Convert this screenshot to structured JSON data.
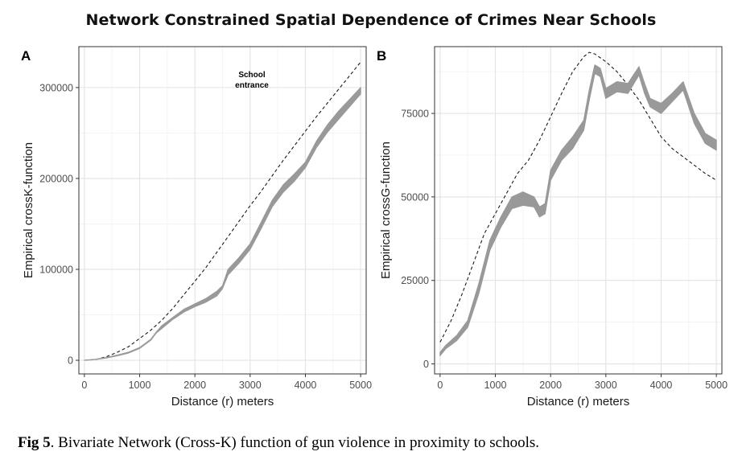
{
  "figure_title": "Network Constrained Spatial Dependence of Crimes Near Schools",
  "caption": {
    "label": "Fig 5",
    "text": ". Bivariate Network (Cross-K) function of gun violence in proximity to schools."
  },
  "colors": {
    "observed_band": "#999999",
    "expected_line": "#1a1a1a",
    "grid_major": "#e3e3e3",
    "grid_minor": "#f1f1f1",
    "panel_border": "#333333"
  },
  "chart_data": [
    {
      "panel": "A",
      "type": "line",
      "xlabel": "Distance (r) meters",
      "ylabel": "Empirical crossK-function",
      "xlim": [
        -100,
        5100
      ],
      "ylim": [
        -15000,
        345000
      ],
      "x_ticks": [
        0,
        1000,
        2000,
        3000,
        4000,
        5000
      ],
      "y_ticks": [
        0,
        100000,
        200000,
        300000
      ],
      "y_tick_labels": [
        "0",
        "100000",
        "200000",
        "300000"
      ],
      "annotation": [
        "School",
        "entrance"
      ],
      "series": [
        {
          "style": "dashed",
          "x": [
            0,
            200,
            400,
            600,
            800,
            1000,
            1200,
            1400,
            1600,
            1800,
            2000,
            2200,
            2400,
            2600,
            2800,
            3000,
            3200,
            3400,
            3600,
            3800,
            4000,
            4200,
            4400,
            4600,
            4800,
            5000
          ],
          "y": [
            0,
            800,
            4000,
            9000,
            15000,
            24000,
            33000,
            44000,
            57000,
            72000,
            87000,
            102000,
            119000,
            136000,
            153000,
            170000,
            186000,
            203000,
            220000,
            236000,
            252000,
            268000,
            283000,
            298000,
            313000,
            328000
          ]
        },
        {
          "style": "band",
          "x": [
            0,
            200,
            400,
            600,
            800,
            1000,
            1200,
            1300,
            1400,
            1600,
            1800,
            2000,
            2200,
            2400,
            2500,
            2600,
            2800,
            3000,
            3200,
            3400,
            3600,
            3800,
            4000,
            4200,
            4400,
            4600,
            4800,
            5000
          ],
          "y_low": [
            0,
            900,
            2500,
            5000,
            8000,
            13000,
            22000,
            30000,
            35000,
            45000,
            53000,
            59000,
            64000,
            71000,
            79000,
            94000,
            107000,
            122000,
            145000,
            169000,
            185000,
            197000,
            212000,
            234000,
            251000,
            265000,
            279000,
            293000
          ],
          "y_high": [
            0,
            1100,
            3000,
            5800,
            9000,
            14000,
            23000,
            31000,
            38000,
            47000,
            56000,
            62000,
            68000,
            76000,
            82000,
            100000,
            113000,
            128000,
            152000,
            176000,
            193000,
            205000,
            218000,
            241000,
            259000,
            274000,
            287000,
            300000
          ]
        }
      ]
    },
    {
      "panel": "B",
      "type": "line",
      "xlabel": "Distance (r) meters",
      "ylabel": "Empirical crossG-function",
      "xlim": [
        -100,
        5100
      ],
      "ylim": [
        -3000,
        95000
      ],
      "x_ticks": [
        0,
        1000,
        2000,
        3000,
        4000,
        5000
      ],
      "y_ticks": [
        0,
        25000,
        50000,
        75000
      ],
      "y_tick_labels": [
        "0",
        "25000",
        "50000",
        "75000"
      ],
      "series": [
        {
          "style": "dashed",
          "x": [
            0,
            200,
            400,
            600,
            800,
            1000,
            1200,
            1400,
            1600,
            1800,
            2000,
            2200,
            2400,
            2600,
            2700,
            2800,
            3000,
            3200,
            3400,
            3600,
            3800,
            4000,
            4200,
            4400,
            4600,
            4800,
            5000
          ],
          "y": [
            6500,
            13000,
            21000,
            30000,
            39000,
            45000,
            51000,
            57000,
            61000,
            67000,
            74000,
            81000,
            87500,
            92000,
            93300,
            92800,
            90500,
            87500,
            83500,
            79000,
            73500,
            68000,
            64500,
            62000,
            59500,
            57000,
            55000
          ]
        },
        {
          "style": "band",
          "x": [
            0,
            100,
            300,
            500,
            700,
            900,
            1100,
            1300,
            1500,
            1700,
            1800,
            1900,
            2000,
            2200,
            2400,
            2600,
            2700,
            2800,
            2900,
            3000,
            3200,
            3400,
            3600,
            3700,
            3800,
            4000,
            4200,
            4400,
            4600,
            4800,
            5000
          ],
          "y_low": [
            2500,
            4500,
            7000,
            11000,
            21000,
            34000,
            41000,
            46500,
            47500,
            47000,
            44000,
            45000,
            55000,
            61000,
            64500,
            70000,
            79000,
            87000,
            86000,
            79500,
            81500,
            81000,
            86500,
            81000,
            77000,
            75000,
            78500,
            82000,
            72000,
            66000,
            64000
          ],
          "y_high": [
            3500,
            5500,
            8500,
            13000,
            24000,
            37000,
            44000,
            50000,
            51500,
            50000,
            47000,
            48000,
            58000,
            64000,
            68000,
            73000,
            82000,
            89500,
            88500,
            82500,
            84500,
            84000,
            89000,
            84000,
            79500,
            78000,
            81000,
            84500,
            75000,
            69000,
            67000
          ]
        }
      ]
    }
  ]
}
